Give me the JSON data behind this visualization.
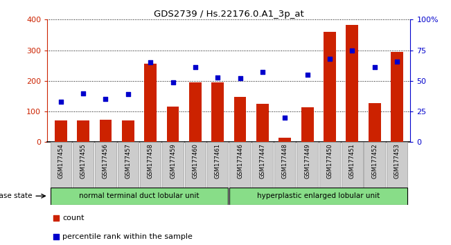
{
  "title": "GDS2739 / Hs.22176.0.A1_3p_at",
  "samples": [
    "GSM177454",
    "GSM177455",
    "GSM177456",
    "GSM177457",
    "GSM177458",
    "GSM177459",
    "GSM177460",
    "GSM177461",
    "GSM177446",
    "GSM177447",
    "GSM177448",
    "GSM177449",
    "GSM177450",
    "GSM177451",
    "GSM177452",
    "GSM177453"
  ],
  "counts": [
    70,
    70,
    73,
    70,
    255,
    115,
    195,
    195,
    148,
    125,
    14,
    113,
    360,
    383,
    128,
    295
  ],
  "percentiles": [
    33,
    40,
    35,
    39,
    65,
    49,
    61,
    53,
    52,
    57,
    20,
    55,
    68,
    75,
    61,
    66
  ],
  "group1_label": "normal terminal duct lobular unit",
  "group1_count": 8,
  "group2_label": "hyperplastic enlarged lobular unit",
  "group2_count": 8,
  "disease_state_label": "disease state",
  "ylim_left": [
    0,
    400
  ],
  "ylim_right": [
    0,
    100
  ],
  "yticks_left": [
    0,
    100,
    200,
    300,
    400
  ],
  "yticks_right": [
    0,
    25,
    50,
    75,
    100
  ],
  "yticklabels_right": [
    "0",
    "25",
    "50",
    "75",
    "100%"
  ],
  "bar_color": "#cc2200",
  "dot_color": "#0000cc",
  "left_axis_color": "#cc2200",
  "right_axis_color": "#0000cc",
  "tick_label_bg": "#cccccc",
  "group_bg_color": "#88dd88"
}
